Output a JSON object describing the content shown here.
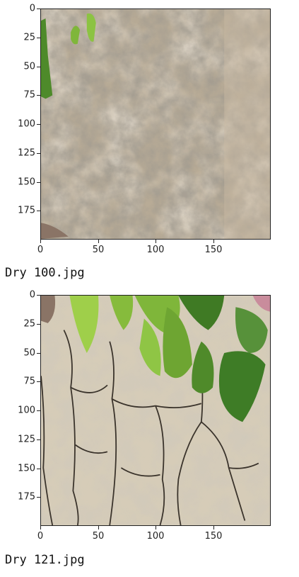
{
  "outputs": [
    {
      "caption": "Dry 100.jpg",
      "image_description_icon": "soil-photo-icon",
      "y_ticks": [
        "0",
        "25",
        "50",
        "75",
        "100",
        "125",
        "150",
        "175"
      ],
      "x_ticks": [
        "0",
        "50",
        "100",
        "150"
      ]
    },
    {
      "caption": "Dry 121.jpg",
      "image_description_icon": "cracked-soil-photo-icon",
      "y_ticks": [
        "0",
        "25",
        "50",
        "75",
        "100",
        "125",
        "150",
        "175"
      ],
      "x_ticks": [
        "0",
        "50",
        "100",
        "150"
      ]
    }
  ],
  "colors": {
    "soil_light": "#c9bba4",
    "soil_dark": "#6e6558",
    "leaf_green": "#7fb63a"
  }
}
